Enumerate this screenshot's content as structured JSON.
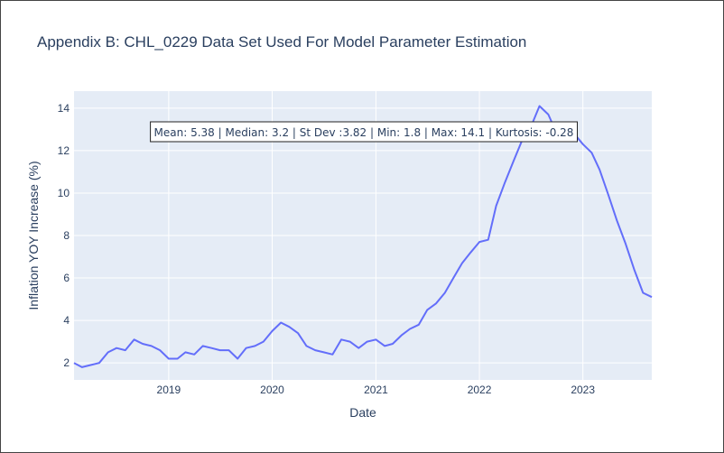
{
  "chart_data": {
    "type": "line",
    "title": "Appendix B: CHL_0229 Data Set Used For Model Parameter Estimation",
    "xlabel": "Date",
    "ylabel": "Inflation YOY Increase (%)",
    "xlim": [
      "2018-02-01",
      "2023-09-01"
    ],
    "ylim": [
      1.2,
      14.8
    ],
    "x_ticks": [
      "2019",
      "2020",
      "2021",
      "2022",
      "2023"
    ],
    "y_ticks": [
      2,
      4,
      6,
      8,
      10,
      12,
      14
    ],
    "grid": true,
    "line_color": "#636efa",
    "plot_bg": "#e5ecf6",
    "annotation": "Mean: 5.38 | Median: 3.2 | St Dev :3.82 | Min: 1.8 | Max: 14.1 | Kurtosis: -0.28",
    "series": [
      {
        "x": [
          "2018-02",
          "2018-03",
          "2018-04",
          "2018-05",
          "2018-06",
          "2018-07",
          "2018-08",
          "2018-09",
          "2018-10",
          "2018-11",
          "2018-12",
          "2019-01",
          "2019-02",
          "2019-03",
          "2019-04",
          "2019-05",
          "2019-06",
          "2019-07",
          "2019-08",
          "2019-09",
          "2019-10",
          "2019-11",
          "2019-12",
          "2020-01",
          "2020-02",
          "2020-03",
          "2020-04",
          "2020-05",
          "2020-06",
          "2020-07",
          "2020-08",
          "2020-09",
          "2020-10",
          "2020-11",
          "2020-12",
          "2021-01",
          "2021-02",
          "2021-03",
          "2021-04",
          "2021-05",
          "2021-06",
          "2021-07",
          "2021-08",
          "2021-09",
          "2021-10",
          "2021-11",
          "2021-12",
          "2022-01",
          "2022-02",
          "2022-03",
          "2022-04",
          "2022-05",
          "2022-06",
          "2022-07",
          "2022-08",
          "2022-09",
          "2022-10",
          "2022-11",
          "2022-12",
          "2023-01",
          "2023-02",
          "2023-03",
          "2023-04",
          "2023-05",
          "2023-06",
          "2023-07",
          "2023-08",
          "2023-09"
        ],
        "values": [
          2.0,
          1.8,
          1.9,
          2.0,
          2.5,
          2.7,
          2.6,
          3.1,
          2.9,
          2.8,
          2.6,
          2.2,
          2.2,
          2.5,
          2.4,
          2.8,
          2.7,
          2.6,
          2.6,
          2.2,
          2.7,
          2.8,
          3.0,
          3.5,
          3.9,
          3.7,
          3.4,
          2.8,
          2.6,
          2.5,
          2.4,
          3.1,
          3.0,
          2.7,
          3.0,
          3.1,
          2.8,
          2.9,
          3.3,
          3.6,
          3.8,
          4.5,
          4.8,
          5.3,
          6.0,
          6.7,
          7.2,
          7.7,
          7.8,
          9.4,
          10.5,
          11.5,
          12.5,
          13.1,
          14.1,
          13.7,
          12.8,
          13.3,
          12.8,
          12.3,
          11.9,
          11.1,
          9.9,
          8.7,
          7.6,
          6.4,
          5.3,
          5.1
        ]
      }
    ]
  }
}
